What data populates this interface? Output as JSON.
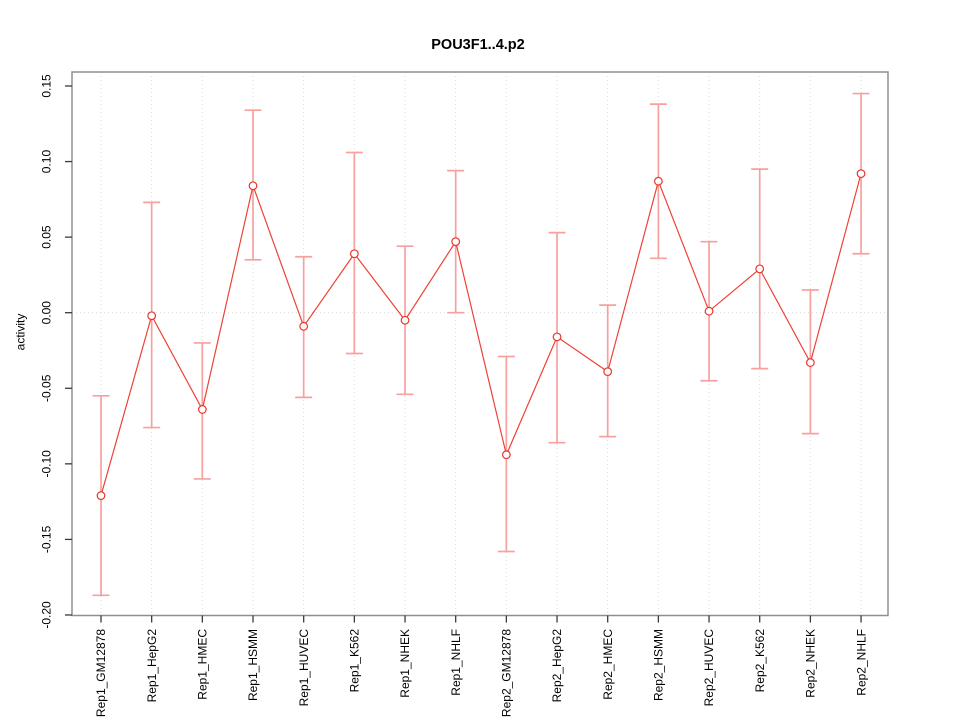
{
  "chart_data": {
    "type": "line",
    "title": "POU3F1..4.p2",
    "xlabel": "",
    "ylabel": "activity",
    "ylim": [
      -0.2,
      0.15
    ],
    "yticks": [
      0.15,
      0.1,
      0.05,
      0.0,
      -0.05,
      -0.1,
      -0.15,
      -0.2
    ],
    "grid": {
      "vertical_at_each_category": true,
      "horizontal_at_zero": true,
      "style": "dotted"
    },
    "legend": null,
    "marker": "open-circle",
    "categories": [
      "Rep1_GM12878",
      "Rep1_HepG2",
      "Rep1_HMEC",
      "Rep1_HSMM",
      "Rep1_HUVEC",
      "Rep1_K562",
      "Rep1_NHEK",
      "Rep1_NHLF",
      "Rep2_GM12878",
      "Rep2_HepG2",
      "Rep2_HMEC",
      "Rep2_HSMM",
      "Rep2_HUVEC",
      "Rep2_K562",
      "Rep2_NHEK",
      "Rep2_NHLF"
    ],
    "series": [
      {
        "name": "activity",
        "values": [
          -0.121,
          -0.002,
          -0.064,
          0.084,
          -0.009,
          0.039,
          -0.005,
          0.047,
          -0.094,
          -0.016,
          -0.039,
          0.087,
          0.001,
          0.029,
          -0.033,
          0.092
        ],
        "error_high": [
          -0.055,
          0.073,
          -0.02,
          0.134,
          0.037,
          0.106,
          0.044,
          0.094,
          -0.029,
          0.053,
          0.005,
          0.138,
          0.047,
          0.095,
          0.015,
          0.145
        ],
        "error_low": [
          -0.187,
          -0.076,
          -0.11,
          0.035,
          -0.056,
          -0.027,
          -0.054,
          0.0,
          -0.158,
          -0.086,
          -0.082,
          0.036,
          -0.045,
          -0.037,
          -0.08,
          0.039
        ]
      }
    ],
    "colors": {
      "series_line": "#ef4136",
      "marker_stroke": "#e8362c",
      "error_bar": "#f7a0a0",
      "grid_line": "#d9d9d9",
      "axis_box": "#8f8f8f",
      "tick_mark": "#3a3a3a",
      "text": "#000000",
      "background": "#ffffff"
    }
  }
}
